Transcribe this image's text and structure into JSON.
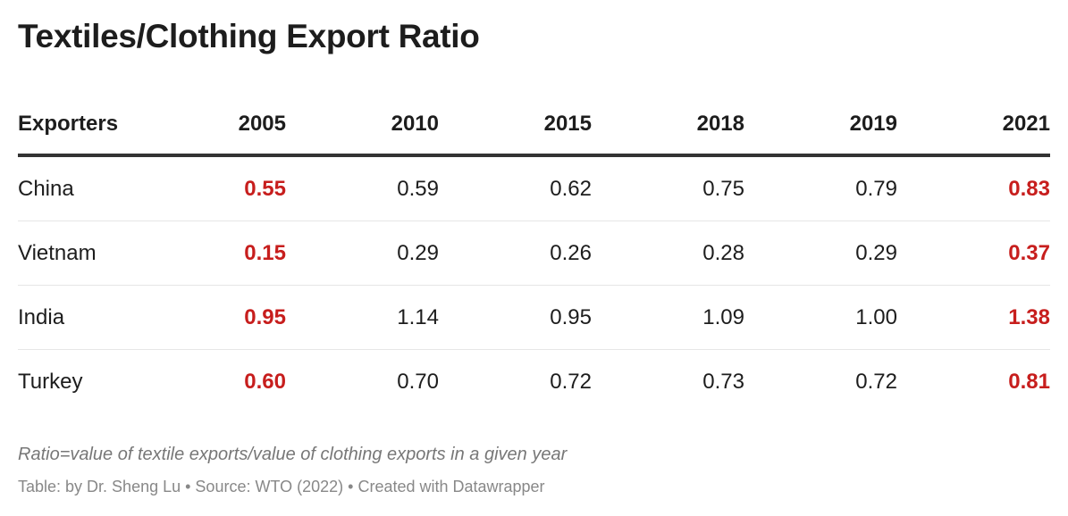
{
  "title": "Textiles/Clothing Export Ratio",
  "highlight_color": "#c71e1d",
  "chart_data": {
    "type": "table",
    "columns": [
      "Exporters",
      "2005",
      "2010",
      "2015",
      "2018",
      "2019",
      "2021"
    ],
    "highlighted_columns": [
      "2005",
      "2021"
    ],
    "rows": [
      [
        "China",
        "0.55",
        "0.59",
        "0.62",
        "0.75",
        "0.79",
        "0.83"
      ],
      [
        "Vietnam",
        "0.15",
        "0.29",
        "0.26",
        "0.28",
        "0.29",
        "0.37"
      ],
      [
        "India",
        "0.95",
        "1.14",
        "0.95",
        "1.09",
        "1.00",
        "1.38"
      ],
      [
        "Turkey",
        "0.60",
        "0.70",
        "0.72",
        "0.73",
        "0.72",
        "0.81"
      ]
    ]
  },
  "footer": {
    "note": "Ratio=value of textile exports/value of clothing exports in a given year",
    "source": "Table: by Dr. Sheng Lu • Source: WTO (2022) • Created with Datawrapper"
  }
}
